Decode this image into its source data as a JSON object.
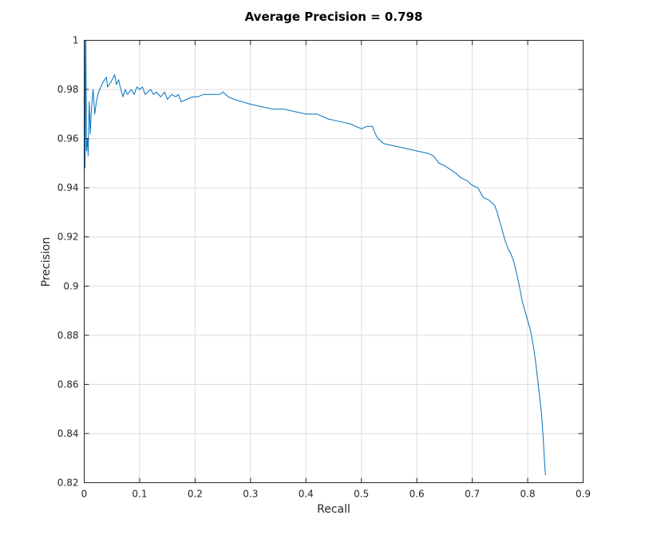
{
  "chart_data": {
    "type": "line",
    "title": "Average Precision = 0.798",
    "xlabel": "Recall",
    "ylabel": "Precision",
    "xlim": [
      0,
      0.9
    ],
    "ylim": [
      0.82,
      1
    ],
    "grid": true,
    "xticks": [
      "0",
      "0.1",
      "0.2",
      "0.3",
      "0.4",
      "0.5",
      "0.6",
      "0.7",
      "0.8",
      "0.9"
    ],
    "yticks": [
      "0.82",
      "0.84",
      "0.86",
      "0.88",
      "0.9",
      "0.92",
      "0.94",
      "0.96",
      "0.98",
      "1"
    ],
    "series": [
      {
        "color": "#0072bd",
        "points": [
          [
            0,
            1.0
          ],
          [
            0.001,
            1.0
          ],
          [
            0.0015,
            0.948
          ],
          [
            0.003,
            1.0
          ],
          [
            0.004,
            0.955
          ],
          [
            0.006,
            0.96
          ],
          [
            0.007,
            0.953
          ],
          [
            0.009,
            0.975
          ],
          [
            0.011,
            0.962
          ],
          [
            0.013,
            0.972
          ],
          [
            0.016,
            0.98
          ],
          [
            0.019,
            0.97
          ],
          [
            0.022,
            0.975
          ],
          [
            0.026,
            0.979
          ],
          [
            0.03,
            0.981
          ],
          [
            0.034,
            0.983
          ],
          [
            0.04,
            0.985
          ],
          [
            0.042,
            0.981
          ],
          [
            0.048,
            0.983
          ],
          [
            0.055,
            0.986
          ],
          [
            0.058,
            0.982
          ],
          [
            0.062,
            0.984
          ],
          [
            0.066,
            0.98
          ],
          [
            0.07,
            0.977
          ],
          [
            0.074,
            0.98
          ],
          [
            0.078,
            0.978
          ],
          [
            0.085,
            0.98
          ],
          [
            0.09,
            0.978
          ],
          [
            0.095,
            0.981
          ],
          [
            0.1,
            0.98
          ],
          [
            0.105,
            0.981
          ],
          [
            0.11,
            0.978
          ],
          [
            0.12,
            0.98
          ],
          [
            0.125,
            0.978
          ],
          [
            0.13,
            0.979
          ],
          [
            0.138,
            0.977
          ],
          [
            0.145,
            0.979
          ],
          [
            0.15,
            0.976
          ],
          [
            0.158,
            0.978
          ],
          [
            0.165,
            0.977
          ],
          [
            0.17,
            0.978
          ],
          [
            0.175,
            0.975
          ],
          [
            0.185,
            0.976
          ],
          [
            0.195,
            0.977
          ],
          [
            0.205,
            0.977
          ],
          [
            0.215,
            0.978
          ],
          [
            0.23,
            0.978
          ],
          [
            0.245,
            0.978
          ],
          [
            0.25,
            0.979
          ],
          [
            0.26,
            0.977
          ],
          [
            0.27,
            0.976
          ],
          [
            0.285,
            0.975
          ],
          [
            0.3,
            0.974
          ],
          [
            0.32,
            0.973
          ],
          [
            0.34,
            0.972
          ],
          [
            0.36,
            0.972
          ],
          [
            0.38,
            0.971
          ],
          [
            0.4,
            0.97
          ],
          [
            0.42,
            0.97
          ],
          [
            0.44,
            0.968
          ],
          [
            0.46,
            0.967
          ],
          [
            0.48,
            0.966
          ],
          [
            0.5,
            0.964
          ],
          [
            0.51,
            0.965
          ],
          [
            0.52,
            0.965
          ],
          [
            0.525,
            0.962
          ],
          [
            0.53,
            0.96
          ],
          [
            0.54,
            0.958
          ],
          [
            0.56,
            0.957
          ],
          [
            0.58,
            0.956
          ],
          [
            0.6,
            0.955
          ],
          [
            0.62,
            0.954
          ],
          [
            0.63,
            0.953
          ],
          [
            0.64,
            0.95
          ],
          [
            0.65,
            0.949
          ],
          [
            0.67,
            0.946
          ],
          [
            0.68,
            0.944
          ],
          [
            0.69,
            0.943
          ],
          [
            0.7,
            0.941
          ],
          [
            0.71,
            0.94
          ],
          [
            0.715,
            0.938
          ],
          [
            0.72,
            0.936
          ],
          [
            0.73,
            0.935
          ],
          [
            0.74,
            0.933
          ],
          [
            0.745,
            0.93
          ],
          [
            0.75,
            0.926
          ],
          [
            0.755,
            0.922
          ],
          [
            0.76,
            0.918
          ],
          [
            0.765,
            0.915
          ],
          [
            0.77,
            0.913
          ],
          [
            0.775,
            0.91
          ],
          [
            0.78,
            0.905
          ],
          [
            0.785,
            0.9
          ],
          [
            0.79,
            0.894
          ],
          [
            0.795,
            0.89
          ],
          [
            0.8,
            0.886
          ],
          [
            0.805,
            0.882
          ],
          [
            0.81,
            0.876
          ],
          [
            0.815,
            0.868
          ],
          [
            0.82,
            0.858
          ],
          [
            0.825,
            0.848
          ],
          [
            0.828,
            0.838
          ],
          [
            0.83,
            0.83
          ],
          [
            0.832,
            0.823
          ]
        ]
      }
    ]
  }
}
